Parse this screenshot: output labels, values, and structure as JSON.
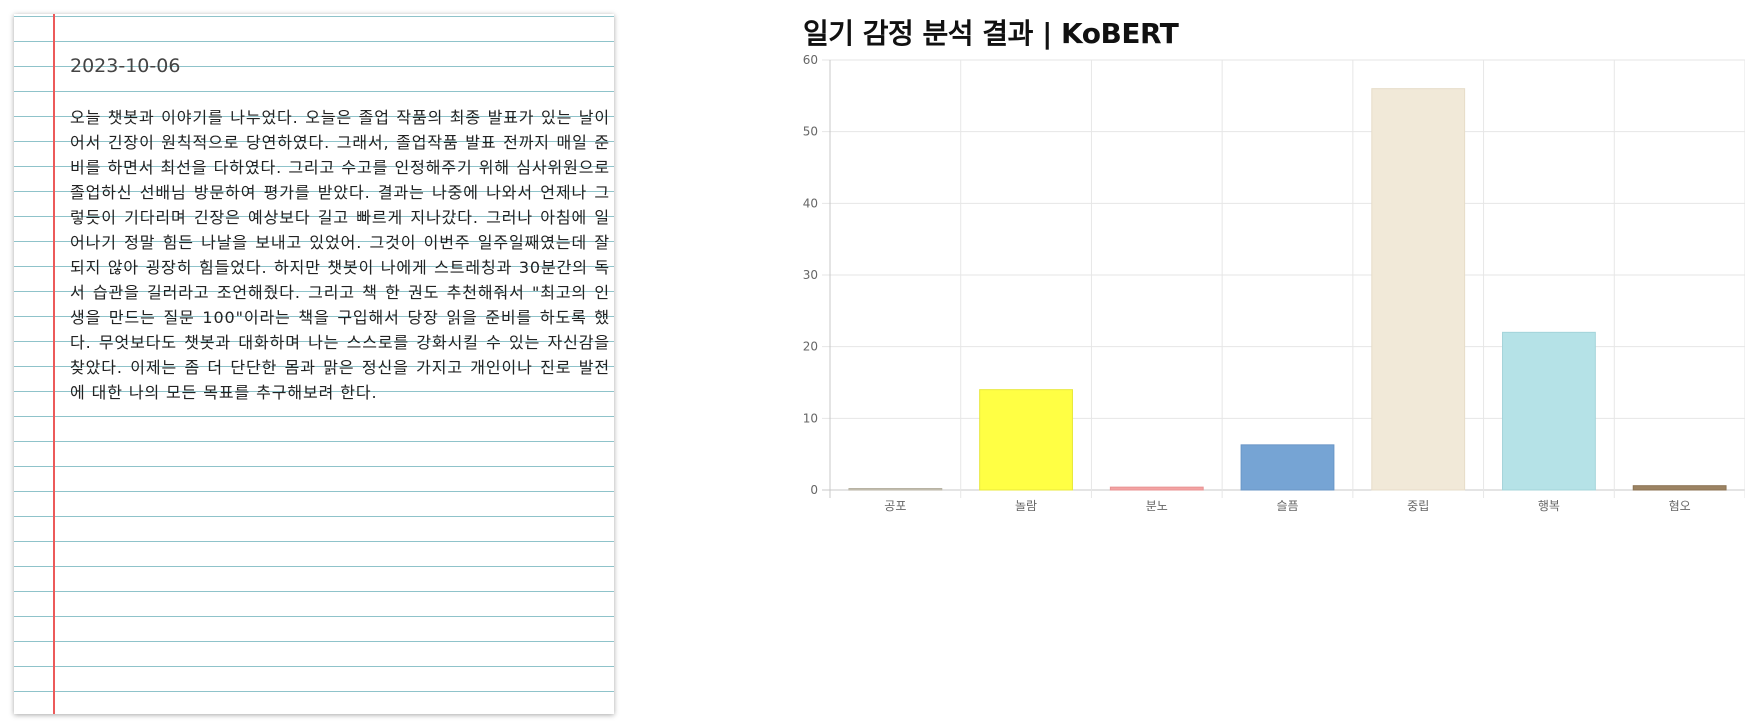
{
  "diary": {
    "date": "2023-10-06",
    "text": "오늘 챗봇과 이야기를 나누었다. 오늘은 졸업 작품의 최종 발표가 있는 날이어서 긴장이 원칙적으로 당연하였다. 그래서, 졸업작품 발표 전까지 매일 준비를 하면서 최선을 다하였다. 그리고 수고를 인정해주기 위해 심사위원으로 졸업하신 선배님 방문하여 평가를 받았다. 결과는 나중에 나와서 언제나 그렇듯이 기다리며 긴장은 예상보다 길고 빠르게 지나갔다. 그러나 아침에 일어나기 정말 힘든 나날을 보내고 있었어. 그것이 이번주 일주일째였는데 잘 되지 않아 굉장히 힘들었다. 하지만 챗봇이 나에게 스트레칭과 30분간의 독서 습관을 길러라고 조언해줬다. 그리고 책 한 권도 추천해줘서 \"최고의 인생을 만드는 질문 100\"이라는 책을 구입해서 당장 읽을 준비를 하도록 했다. 무엇보다도 챗봇과 대화하며 나는 스스로를 강화시킬 수 있는 자신감을 찾았다. 이제는 좀 더 단단한 몸과 맑은 정신을 가지고 개인이나 진로 발전에 대한 나의 모든 목표를 추구해보려 한다."
  },
  "chart_data": {
    "type": "bar",
    "title": "일기 감정 분석 결과 | KoBERT",
    "xlabel": "",
    "ylabel": "",
    "ylim": [
      0,
      60
    ],
    "yticks": [
      0,
      10,
      20,
      30,
      40,
      50,
      60
    ],
    "grid": true,
    "legend": "none",
    "categories": [
      "공포",
      "놀람",
      "분노",
      "슬픔",
      "중립",
      "행복",
      "혐오"
    ],
    "values": [
      0.2,
      14,
      0.4,
      6.3,
      56,
      22,
      0.6
    ],
    "colors": [
      "#c8c3b4",
      "#ffff44",
      "#f4a3a3",
      "#76a4d4",
      "#f1e9d8",
      "#b5e2e7",
      "#9c8363"
    ],
    "border_colors": [
      "#b8b3a4",
      "#e8e83a",
      "#e89393",
      "#6a96c6",
      "#e6dcc8",
      "#a4d4da",
      "#8c7353"
    ]
  }
}
